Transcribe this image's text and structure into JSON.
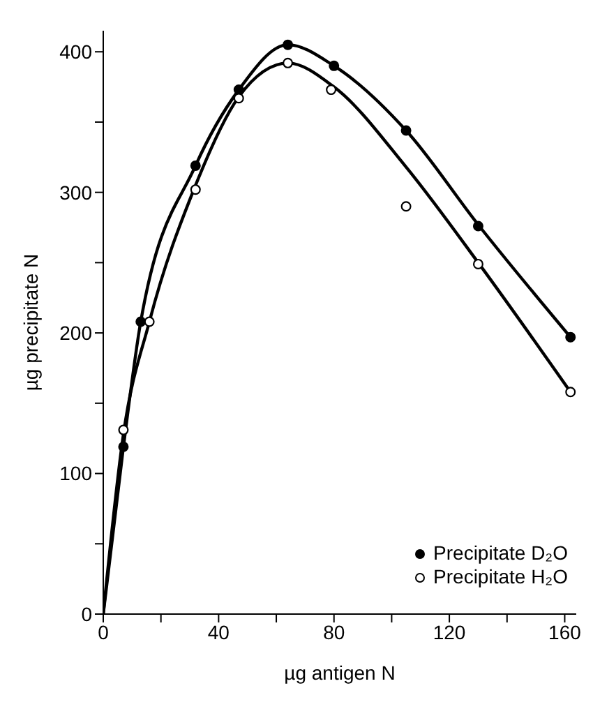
{
  "chart_data": {
    "type": "scatter",
    "xlabel": "µg antigen N",
    "ylabel": "µg precipitate N",
    "xlim": [
      0,
      164
    ],
    "ylim": [
      0,
      415
    ],
    "xticks": [
      0,
      {
        "value": 20,
        "label": null
      },
      40,
      {
        "value": 60,
        "label": null
      },
      80,
      {
        "value": 100,
        "label": null
      },
      120,
      {
        "value": 140,
        "label": null
      },
      160
    ],
    "yticks": [
      0,
      {
        "value": 50,
        "label": null
      },
      100,
      {
        "value": 150,
        "label": null
      },
      200,
      {
        "value": 250,
        "label": null
      },
      300,
      {
        "value": 350,
        "label": null
      },
      400
    ],
    "grid": false,
    "legend": "bottom right",
    "marker": "circle",
    "series": [
      {
        "type": "line",
        "color": "#000000",
        "marker": "none",
        "x": [
          0,
          7,
          13,
          32,
          47,
          64,
          80,
          105,
          130,
          162
        ],
        "values": [
          0,
          119,
          208,
          319,
          373,
          405,
          390,
          344,
          277,
          197
        ]
      },
      {
        "type": "line",
        "color": "#000000",
        "marker": "none",
        "x": [
          0,
          7,
          16,
          32,
          47,
          64,
          80,
          105,
          130,
          162
        ],
        "values": [
          0,
          128,
          208,
          305,
          368,
          392,
          375,
          318,
          250,
          158
        ]
      },
      {
        "name": "Precipitate D₂O",
        "color": "#000000",
        "x": [
          7,
          13,
          32,
          47,
          64,
          80,
          105,
          130,
          162
        ],
        "values": [
          119,
          208,
          319,
          373,
          405,
          390,
          344,
          276,
          197
        ]
      },
      {
        "name": "Precipitate H₂O",
        "color": "#ffffff",
        "x": [
          7,
          16,
          32,
          47,
          64,
          79,
          105,
          130,
          162
        ],
        "values": [
          131,
          208,
          302,
          367,
          392,
          373,
          290,
          249,
          158
        ]
      }
    ]
  }
}
